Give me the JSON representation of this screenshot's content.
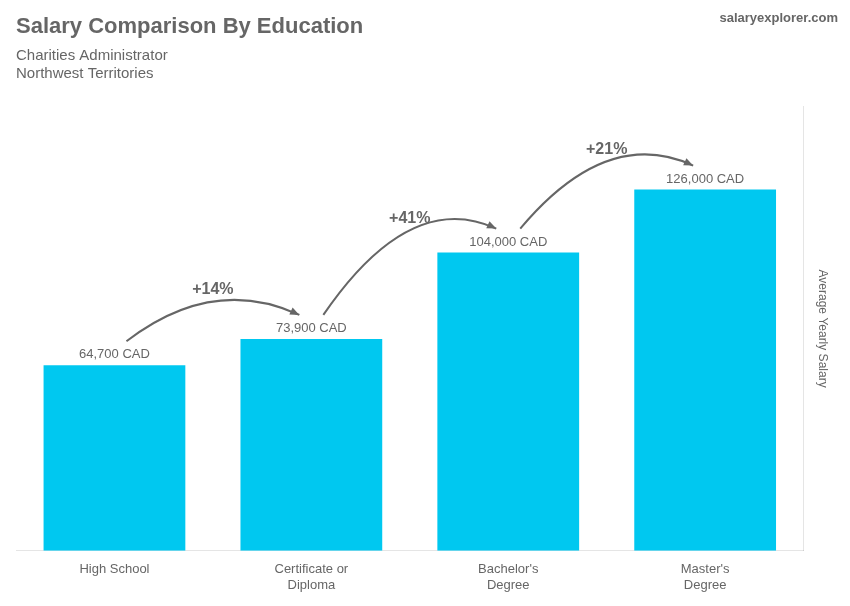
{
  "chart_data": {
    "type": "bar",
    "title": "Salary Comparison By Education",
    "subtitle": [
      "Charities Administrator",
      "Northwest Territories"
    ],
    "y_label": "Average Yearly Salary",
    "categories": [
      "High School",
      "Certificate or\nDiploma",
      "Bachelor's\nDegree",
      "Master's\nDegree"
    ],
    "values": [
      64700,
      73900,
      104000,
      126000
    ],
    "value_labels": [
      "64,700 CAD",
      "73,900 CAD",
      "104,000 CAD",
      "126,000 CAD"
    ],
    "data_labels": true,
    "color": "#00c8f0",
    "ylim": [
      0,
      155000
    ],
    "yticks": [],
    "grid": false,
    "tick_labels": "x",
    "annotations": [
      {
        "text": "+14%",
        "from": "High School",
        "to": "Certificate or\nDiploma"
      },
      {
        "text": "+41%",
        "from": "Certificate or\nDiploma",
        "to": "Bachelor's\nDegree"
      },
      {
        "text": "+21%",
        "from": "Bachelor's\nDegree",
        "to": "Master's\nDegree"
      },
      {
        "text": "salaryexplorer.com"
      }
    ]
  }
}
